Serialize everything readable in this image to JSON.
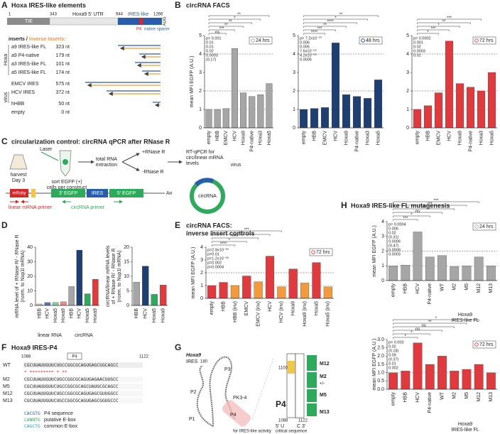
{
  "panel_labels": [
    "A",
    "B",
    "C",
    "D",
    "E",
    "F",
    "G",
    "H"
  ],
  "panel_A": {
    "title": "Hoxa IRES-like elements",
    "tie": "TIE",
    "utr": "Hoxa9 5' UTR",
    "ires": "IRES-like",
    "p4": "P4",
    "spacer": "native spacer",
    "aug": "AUG",
    "positions": [
      "1",
      "343",
      "944",
      "1266"
    ],
    "inserts_heading": "inserts / ",
    "inverse_heading": "inverse inserts:",
    "group_hoxa": "Hoxa",
    "group_virus": "virus",
    "rows": [
      {
        "name": "a9 IRES-like FL",
        "size": "323 nt"
      },
      {
        "name": "a9 P4-native",
        "size": "179 nt"
      },
      {
        "name": "a3 IRES-like FL",
        "size": "101 nt"
      },
      {
        "name": "a5 IRES-like FL",
        "size": "174 nt"
      },
      {
        "name": "EMCV IRES",
        "size": "575 nt"
      },
      {
        "name": "HCV IRES",
        "size": "372 nt"
      },
      {
        "name": "hHBB",
        "size": "50 nt"
      },
      {
        "name": "empty",
        "size": "0 nt"
      }
    ]
  },
  "panel_B": {
    "title": "circRNA FACS"
  },
  "panel_C": {
    "title": "circularization control: circRNA qPCR after RNase R",
    "harvest": [
      "harvest",
      "Day 3"
    ],
    "laser": "Laser",
    "sort": [
      "sort EGFP (+)",
      "cells per construct"
    ],
    "extraction": [
      "total RNA",
      "extraction"
    ],
    "plus": "+RNase R",
    "minus": "-RNase R",
    "qpcr": [
      "RT-qPCR for",
      "circ/linear mRNA",
      "levels"
    ],
    "mruby": "mRuby",
    "egfp3": "3' EGFP",
    "ires": "IRES",
    "egfp5": "5' EGFP",
    "polya": "An",
    "circ": "circRNA",
    "linear_primer": "linear mRNA primer",
    "circ_primer": "circRNA primer"
  },
  "panel_E": {
    "title": [
      "circRNA FACS:",
      "inverse insert controls"
    ]
  },
  "panel_F": {
    "title": "Hoxa9 IRES-P4",
    "start": "1088",
    "end": "1122",
    "p4": "P4",
    "stars": "* *********  * **",
    "rows": [
      {
        "name": "WT",
        "seq": "CGCUUAUUGUUCUGCCGGCGCAGUGAGCGGCAGCC"
      },
      {
        "name": "M2",
        "seq": "CGCUUAUUGUUCUGCCGGCGCAGUGAGAACUUGCC"
      },
      {
        "name": "M5",
        "seq": "CGCUUAUUGUUCUGCCGGCGCAGCUAUGCGCAGCC"
      },
      {
        "name": "M12",
        "seq": "CGCUUAUUGUUCUGCCGGCGCAGUGAGCGUUGGCC"
      },
      {
        "name": "M13",
        "seq": "CGCUUAUUGUUCUGCCGGCGCAGUGAGCGGUGCCC"
      }
    ],
    "legend": [
      {
        "code": "CACGTG",
        "label": "P4 sequence"
      },
      {
        "code": "CANNTG",
        "label": "putative E-box"
      },
      {
        "code": "CAGCTG",
        "label": "common E-box"
      }
    ]
  },
  "panel_G": {
    "name": "Hoxa9",
    "ires": "IRES",
    "start": "180",
    "stems": [
      "P1",
      "P2",
      "P3",
      "PK3-4",
      "P4"
    ],
    "p4": "P4",
    "n1100": "1100",
    "n1088": "1088",
    "n1122": "1122",
    "five": "5' U",
    "three": "C 3'",
    "mutants": [
      "M12",
      "M2",
      "M5",
      "M13"
    ],
    "pm": "+/-",
    "critical": [
      "critical sequence",
      "for IRES-like activity"
    ]
  },
  "panel_H": {
    "title": "Hoxa9 IRES-like FL mutagenesis"
  },
  "chart_data": [
    {
      "type": "bar",
      "ylabel": [
        "mean MFI EGFP (A.U.)"
      ],
      "categories": [
        "empty",
        "HBB",
        "EMCV",
        "HCV",
        "Hoxa9",
        "P4-native",
        "Hoxa3",
        "Hoxa5"
      ],
      "series": [
        {
          "name": "24 hrs",
          "color": "#a6a6a6",
          "values": [
            1.0,
            1.0,
            1.05,
            4.3,
            1.9,
            1.7,
            1.8,
            2.4
          ]
        }
      ],
      "ylim": [
        0,
        5
      ],
      "yticks": [
        0,
        1,
        2,
        3,
        4,
        5
      ],
      "ref_lines": [
        1,
        2,
        4
      ],
      "annotations": [
        "p= 0.001",
        "0.01",
        "0.01",
        "0.02",
        "0.0003",
        "(0.17)"
      ],
      "brackets": [
        "ns",
        "***",
        "**",
        "**",
        "*",
        "**"
      ],
      "group_labels": [
        "virus"
      ]
    },
    {
      "type": "bar",
      "categories": [
        "empty",
        "HBB",
        "EMCV",
        "HCV",
        "Hoxa9",
        "P4-native",
        "Hoxa3",
        "Hoxa5"
      ],
      "series": [
        {
          "name": "48 hrs",
          "color": "#1f3f73",
          "values": [
            1.0,
            1.05,
            1.1,
            4.6,
            1.8,
            1.7,
            1.6,
            2.6
          ]
        }
      ],
      "ylim": [
        0,
        5
      ],
      "yticks": [
        0,
        1,
        2,
        3,
        4,
        5
      ],
      "ref_lines": [
        1,
        2,
        4
      ],
      "annotations": [
        "p= 7.2x10⁻⁰⁷",
        "0.006",
        "0.005",
        "7.6x10⁻⁰⁵",
        "4.2x10⁻⁰⁵",
        "0.0005"
      ],
      "brackets": [
        "****",
        "***",
        "**",
        "****",
        "*",
        "**"
      ]
    },
    {
      "type": "bar",
      "categories": [
        "empty",
        "HBB",
        "EMCV",
        "HCV",
        "Hoxa9",
        "P4-native",
        "Hoxa3",
        "Hoxa5"
      ],
      "series": [
        {
          "name": "72 hrs",
          "color": "#e0393e",
          "values": [
            1.0,
            1.2,
            1.9,
            4.7,
            2.4,
            2.2,
            2.0,
            3.0
          ]
        }
      ],
      "ylim": [
        0,
        5
      ],
      "yticks": [
        0,
        1,
        2,
        3,
        4,
        5
      ],
      "ref_lines": [
        1,
        2,
        4
      ],
      "annotations": [
        "p= 0.0002",
        "0.001",
        "0.02",
        "0.0003",
        "0.02"
      ],
      "brackets": [
        "*",
        "***",
        "*",
        "**",
        "***"
      ]
    },
    {
      "type": "bar",
      "ylabel": [
        "mRNA level of + RNase R/ - RNase R",
        "(norm. to Nup1l mRNA)"
      ],
      "categories": [
        "HBB",
        "HCV",
        "Hoxa5",
        "Hoxa9",
        "HBB",
        "HCV",
        "Hoxa5",
        "Hoxa9"
      ],
      "series": [
        {
          "colors": [
            "#c8c8c8",
            "#5a78a8",
            "#7fd19b",
            "#f08a8a",
            "#a6a6a6",
            "#1f3f73",
            "#2eaa5c",
            "#e0393e"
          ],
          "values": [
            1.0,
            2.0,
            2.0,
            2.5,
            13,
            38,
            8,
            18
          ]
        }
      ],
      "ylim": [
        0,
        40
      ],
      "yticks": [
        0,
        10,
        20,
        30,
        40
      ],
      "group_labels": [
        "linear RNA",
        "circRNA"
      ]
    },
    {
      "type": "bar",
      "ylabel": [
        "circRNA/linear mRNA levels",
        "of + RNase R/ - RNase R",
        "(norm. to Nup1l mRNA)"
      ],
      "categories": [
        "HBB",
        "HCV",
        "Hoxa5",
        "Hoxa9"
      ],
      "series": [
        {
          "colors": [
            "#a6a6a6",
            "#1f3f73",
            "#2eaa5c",
            "#e0393e"
          ],
          "values": [
            8,
            13.5,
            3.8,
            7
          ]
        }
      ],
      "ylim": [
        0,
        20
      ],
      "yticks": [
        0,
        5,
        10,
        15,
        20
      ]
    },
    {
      "type": "bar",
      "ylabel": [
        "mean MFI EGFP (A.U.)"
      ],
      "categories": [
        "empty",
        "HBB",
        "HBB (inv)",
        "EMCV",
        "EMCV (inv)",
        "HCV",
        "HCV (inv)",
        "Hoxa9",
        "Hoxa9 (inv)",
        "Hoxa5",
        "Hoxa5 (inv)"
      ],
      "series": [
        {
          "name": "72 hrs",
          "color": "#e0393e",
          "colors": [
            "#e0393e",
            "#e0393e",
            "#f39a3c",
            "#e0393e",
            "#f39a3c",
            "#e0393e",
            "#f39a3c",
            "#e0393e",
            "#f39a3c",
            "#e0393e",
            "#f39a3c"
          ],
          "values": [
            1.0,
            1.25,
            1.0,
            1.75,
            1.3,
            3.3,
            0.9,
            2.3,
            1.2,
            2.8,
            0.9
          ]
        }
      ],
      "ylim": [
        0,
        4
      ],
      "yticks": [
        0,
        1,
        2,
        3,
        4
      ],
      "ref_lines": [
        1,
        2
      ],
      "annotations": [
        "p=2.9x10⁻⁰⁵",
        "p=0.01",
        "p=1.2x10⁻⁰⁶",
        "p=0.002",
        "p=0.0004"
      ],
      "brackets": [
        "****",
        "*",
        "****",
        "**",
        "***"
      ]
    },
    {
      "type": "bar",
      "ylabel": [
        "mean MFI EGFP (A.U.)"
      ],
      "categories": [
        "empty",
        "HBB",
        "HCV",
        "P4-native",
        "WT",
        "M2",
        "M5",
        "M12",
        "M13"
      ],
      "series": [
        {
          "name": "24 hrs",
          "color": "#a6a6a6",
          "values": [
            1.0,
            1.05,
            3.3,
            1.6,
            1.7,
            0.95,
            1.0,
            1.6,
            1.0
          ]
        }
      ],
      "ylim": [
        0,
        4
      ],
      "yticks": [
        0,
        1,
        2,
        3,
        4
      ],
      "ref_lines": [
        1,
        2
      ],
      "annotations": [
        "p= 0.0004",
        "0.006",
        "0.02",
        "(0.31)",
        "0.0006",
        "(0.47)",
        "0.0009",
        "0.0003"
      ],
      "brackets": [
        "***",
        "*",
        "ns",
        "**",
        "***",
        "***"
      ],
      "group_labels": [
        "Hoxa9",
        "IRES-like FL"
      ]
    },
    {
      "type": "bar",
      "ylabel": [
        "mean MFI EGFP (A.U.)"
      ],
      "categories": [
        "empty",
        "HBB",
        "HCV",
        "P4-native",
        "WT",
        "M2",
        "M5",
        "M12",
        "M13"
      ],
      "series": [
        {
          "name": "72 hrs",
          "color": "#e0393e",
          "values": [
            1.0,
            1.1,
            2.8,
            1.5,
            2.0,
            1.1,
            1.2,
            1.5,
            1.0
          ]
        }
      ],
      "ylim": [
        0,
        3
      ],
      "yticks": [
        {
          "value": 0,
          "label": "0.0"
        },
        {
          "value": 0.5,
          "label": "0.5"
        },
        {
          "value": 1,
          "label": "1.0"
        },
        {
          "value": 1.5,
          "label": "1.5"
        },
        {
          "value": 2,
          "label": "2.0"
        },
        {
          "value": 2.5,
          "label": "2.5"
        },
        {
          "value": 3,
          "label": "3.0"
        }
      ],
      "ref_lines": [
        1
      ],
      "annotations": [
        "p= 0.003",
        "0.02",
        "(0.18)",
        "0.09",
        "(0.37)",
        "0.01",
        "0.002"
      ],
      "brackets": [
        "*",
        "*",
        "ns",
        "ns",
        "**",
        "*"
      ],
      "group_labels": [
        "Hoxa9",
        "IRES-like FL"
      ]
    }
  ]
}
